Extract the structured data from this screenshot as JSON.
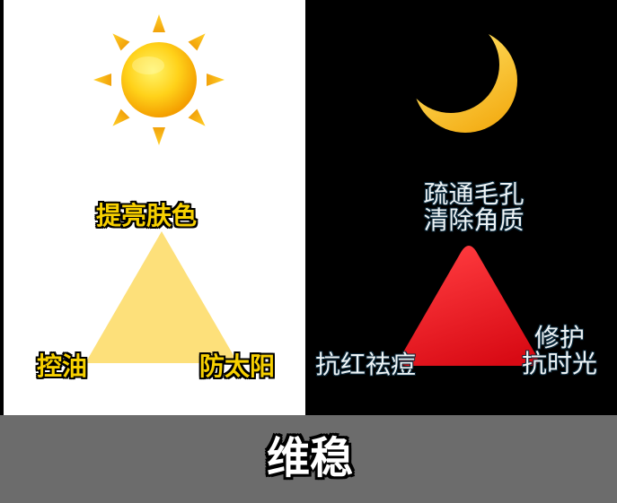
{
  "day": {
    "top_label": "提亮肤色",
    "left_label": "控油",
    "right_label": "防太阳",
    "icon": "sun-icon"
  },
  "night": {
    "top_line_1": "疏通毛孔",
    "top_line_2": "清除角质",
    "left_label": "抗红祛痘",
    "right_line_1": "修护",
    "right_line_2": "抗时光",
    "icon": "crescent-moon-icon"
  },
  "footer": {
    "label": "维稳"
  },
  "colors": {
    "day_background": "#ffffff",
    "night_background": "#000000",
    "footer_background": "#6c6c6c",
    "day_triangle": "#fde07a",
    "night_triangle": "#e8141c",
    "day_text": "#f7d000",
    "night_text": "#eef3f5"
  }
}
